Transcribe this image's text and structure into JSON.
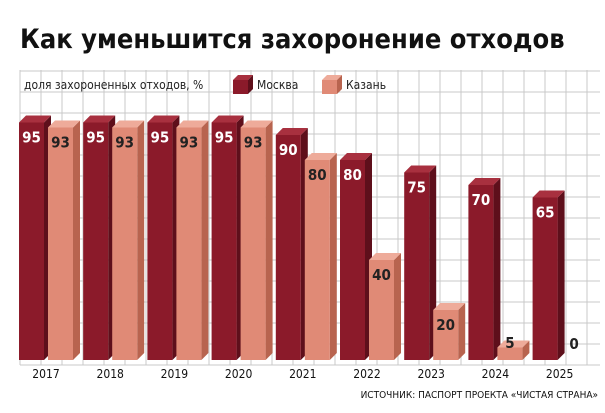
{
  "title": "Как уменьшится захоронение отходов",
  "source": "ИСТОЧНИК: ПАСПОРТ ПРОЕКТА «ЧИСТАЯ СТРАНА»",
  "colors": {
    "moscow": "#8b1a2a",
    "moscow_side": "#5e0f1b",
    "moscow_top": "#a8303f",
    "kazan": "#e08a76",
    "kazan_side": "#b8644f",
    "kazan_top": "#eeab9a",
    "grid": "#c8c8c8",
    "label_on_dark": "#ffffff",
    "label_on_light": "#222222"
  },
  "chart_data": {
    "type": "bar",
    "ylabel": "доля захороненных отходов, %",
    "ylim": [
      0,
      100
    ],
    "categories": [
      "2017",
      "2018",
      "2019",
      "2020",
      "2021",
      "2022",
      "2023",
      "2024",
      "2025"
    ],
    "series": [
      {
        "name": "Москва",
        "values": [
          95,
          95,
          95,
          95,
          90,
          80,
          75,
          70,
          65
        ]
      },
      {
        "name": "Казань",
        "values": [
          93,
          93,
          93,
          93,
          80,
          40,
          20,
          5,
          0
        ]
      }
    ],
    "grid": true,
    "legend": "top"
  }
}
